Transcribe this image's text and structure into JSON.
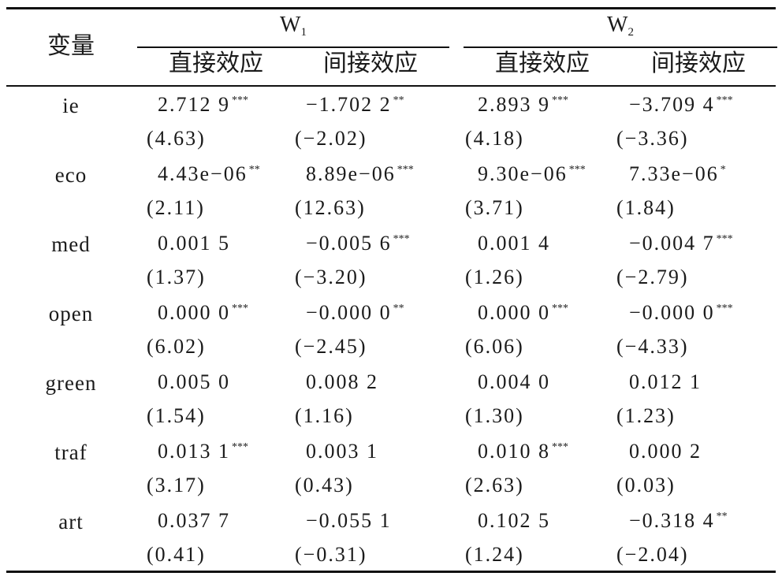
{
  "header": {
    "variable_label": "变量",
    "groups": [
      {
        "name": "W",
        "subscript": "1",
        "effects": [
          "直接效应",
          "间接效应"
        ]
      },
      {
        "name": "W",
        "subscript": "2",
        "effects": [
          "直接效应",
          "间接效应"
        ]
      }
    ]
  },
  "rows": [
    {
      "name": "ie",
      "coef": [
        [
          "2.712 9",
          "***"
        ],
        [
          "−1.702 2",
          "**"
        ],
        [
          "2.893 9",
          "***"
        ],
        [
          "−3.709 4",
          "***"
        ]
      ],
      "t": [
        "(4.63)",
        "(−2.02)",
        "(4.18)",
        "(−3.36)"
      ]
    },
    {
      "name": "eco",
      "coef": [
        [
          "4.43e−06",
          "**"
        ],
        [
          "8.89e−06",
          "***"
        ],
        [
          "9.30e−06",
          "***"
        ],
        [
          "7.33e−06",
          "*"
        ]
      ],
      "t": [
        "(2.11)",
        "(12.63)",
        "(3.71)",
        "(1.84)"
      ]
    },
    {
      "name": "med",
      "coef": [
        [
          "0.001 5",
          ""
        ],
        [
          "−0.005 6",
          "***"
        ],
        [
          "0.001 4",
          ""
        ],
        [
          "−0.004 7",
          "***"
        ]
      ],
      "t": [
        "(1.37)",
        "(−3.20)",
        "(1.26)",
        "(−2.79)"
      ]
    },
    {
      "name": "open",
      "coef": [
        [
          "0.000 0",
          "***"
        ],
        [
          "−0.000 0",
          "**"
        ],
        [
          "0.000 0",
          "***"
        ],
        [
          "−0.000 0",
          "***"
        ]
      ],
      "t": [
        "(6.02)",
        "(−2.45)",
        "(6.06)",
        "(−4.33)"
      ]
    },
    {
      "name": "green",
      "coef": [
        [
          "0.005 0",
          ""
        ],
        [
          "0.008 2",
          ""
        ],
        [
          "0.004 0",
          ""
        ],
        [
          "0.012 1",
          ""
        ]
      ],
      "t": [
        "(1.54)",
        "(1.16)",
        "(1.30)",
        "(1.23)"
      ]
    },
    {
      "name": "traf",
      "coef": [
        [
          "0.013 1",
          "***"
        ],
        [
          "0.003 1",
          ""
        ],
        [
          "0.010 8",
          "***"
        ],
        [
          "0.000 2",
          ""
        ]
      ],
      "t": [
        "(3.17)",
        "(0.43)",
        "(2.63)",
        "(0.03)"
      ]
    },
    {
      "name": "art",
      "coef": [
        [
          "0.037 7",
          ""
        ],
        [
          "−0.055 1",
          ""
        ],
        [
          "0.102 5",
          ""
        ],
        [
          "−0.318 4",
          "**"
        ]
      ],
      "t": [
        "(0.41)",
        "(−0.31)",
        "(1.24)",
        "(−2.04)"
      ]
    }
  ]
}
